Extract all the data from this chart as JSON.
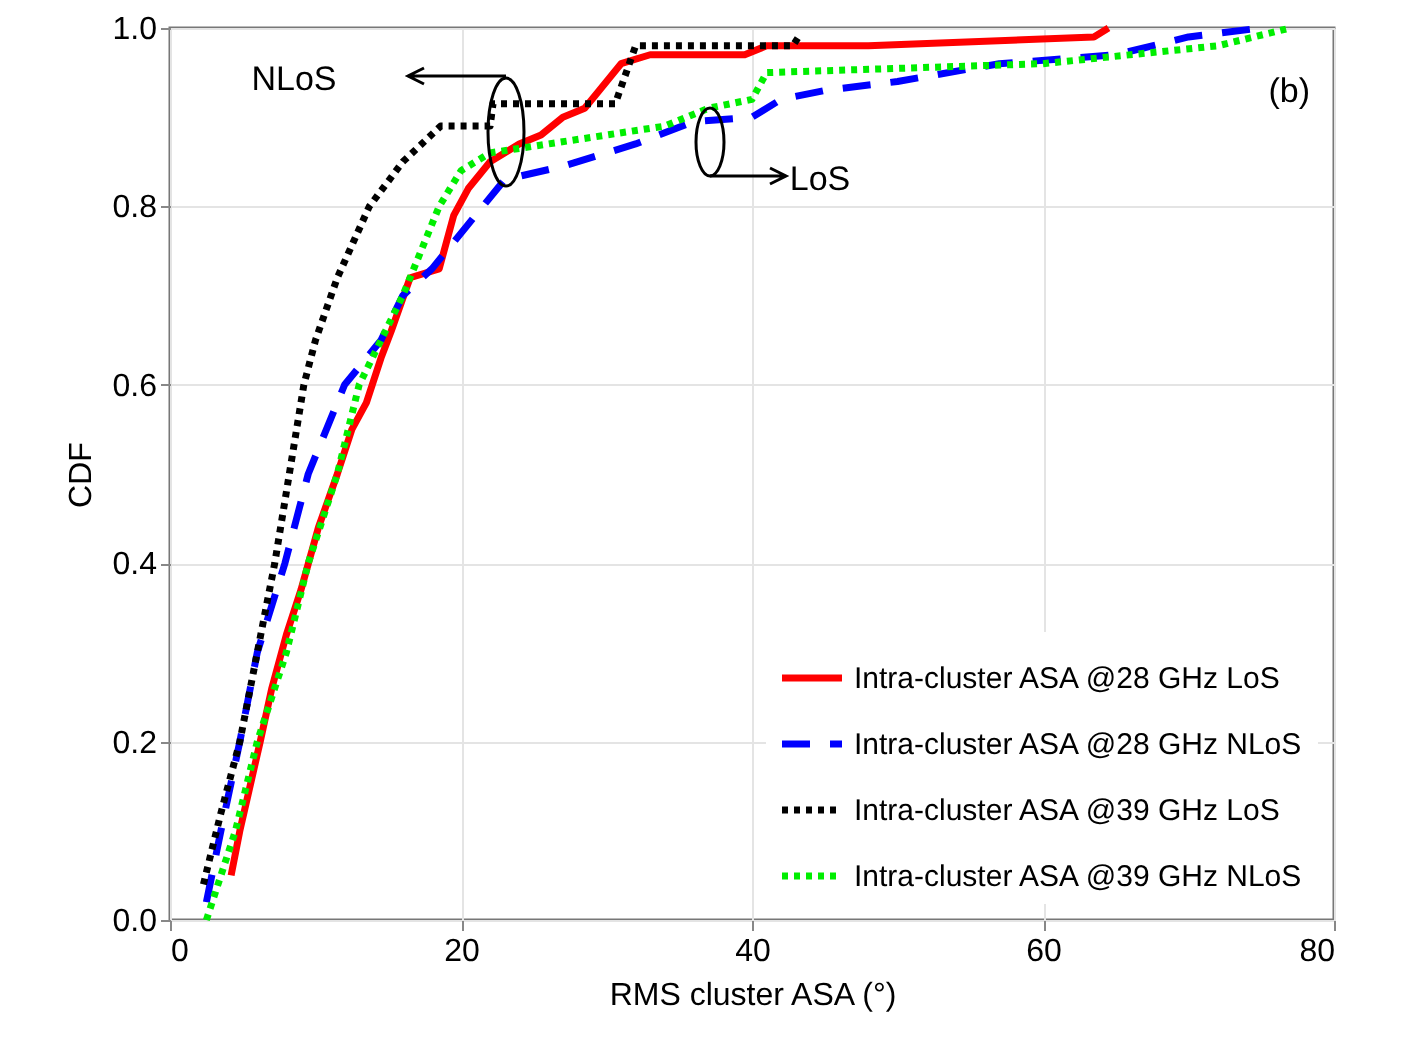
{
  "chart_data": {
    "type": "line",
    "xlabel": "RMS cluster ASA (°)",
    "ylabel": "CDF",
    "xlim": [
      0,
      80
    ],
    "xticks": [
      0,
      20,
      40,
      60,
      80
    ],
    "ylim": [
      0,
      1
    ],
    "yticks": [
      {
        "value": 0,
        "label": "0.0"
      },
      {
        "value": 0.2,
        "label": "0.2"
      },
      {
        "value": 0.4,
        "label": "0.4"
      },
      {
        "value": 0.6,
        "label": "0.6"
      },
      {
        "value": 0.8,
        "label": "0.8"
      },
      {
        "value": 1,
        "label": "1.0"
      }
    ],
    "grid": true,
    "legend": "bottom right",
    "annotations": [
      "NLoS",
      "LoS",
      "(b)"
    ],
    "series": [
      {
        "name": "Intra-cluster ASA @28 GHz LoS",
        "color": "#ff0000",
        "line_style": "solid",
        "x": [
          4.2,
          4.8,
          5.5,
          6.2,
          7,
          8,
          9,
          10.2,
          11.5,
          12.5,
          13.5,
          14.5,
          15.2,
          16.5,
          18.5,
          19.5,
          20.5,
          22,
          24,
          25.5,
          27,
          28.5,
          29.5,
          31,
          33,
          39.5,
          41,
          48,
          63.5,
          64.5
        ],
        "values": [
          0.05,
          0.1,
          0.15,
          0.2,
          0.26,
          0.32,
          0.37,
          0.44,
          0.5,
          0.55,
          0.58,
          0.63,
          0.66,
          0.72,
          0.73,
          0.79,
          0.82,
          0.85,
          0.87,
          0.88,
          0.9,
          0.91,
          0.93,
          0.96,
          0.97,
          0.97,
          0.98,
          0.98,
          0.99,
          1.0
        ]
      },
      {
        "name": "Intra-cluster ASA @28 GHz NLoS",
        "color": "#0000ff",
        "line_style": "dashed",
        "x": [
          2.5,
          3.5,
          4.8,
          6,
          7.9,
          9.5,
          12,
          14.5,
          16,
          18,
          19.5,
          21.5,
          23,
          27,
          30,
          32,
          36,
          40,
          42,
          45,
          50,
          57,
          65,
          70,
          75
        ],
        "values": [
          0.02,
          0.1,
          0.2,
          0.3,
          0.4,
          0.5,
          0.6,
          0.65,
          0.7,
          0.73,
          0.76,
          0.8,
          0.83,
          0.845,
          0.86,
          0.87,
          0.895,
          0.9,
          0.92,
          0.93,
          0.94,
          0.96,
          0.97,
          0.99,
          1.0
        ]
      },
      {
        "name": "Intra-cluster ASA @39 GHz LoS",
        "color": "#000000",
        "line_style": "dotted",
        "x": [
          2.3,
          3.5,
          4.8,
          6,
          7.2,
          8.2,
          9.2,
          10,
          11.5,
          13.7,
          16,
          18.6,
          22,
          22.2,
          30.6,
          32,
          42.8,
          43.2
        ],
        "values": [
          0.04,
          0.12,
          0.2,
          0.3,
          0.4,
          0.5,
          0.6,
          0.65,
          0.72,
          0.8,
          0.85,
          0.89,
          0.89,
          0.915,
          0.915,
          0.98,
          0.98,
          0.99
        ]
      },
      {
        "name": "Intra-cluster ASA @39 GHz NLoS",
        "color": "#00ee00",
        "line_style": "dotted",
        "x": [
          2.5,
          4.5,
          6,
          8,
          9.5,
          11.5,
          13,
          16,
          18.5,
          20,
          22,
          26,
          30,
          34,
          37,
          40,
          41,
          60,
          72,
          77
        ],
        "values": [
          0.0,
          0.1,
          0.2,
          0.3,
          0.4,
          0.5,
          0.6,
          0.7,
          0.8,
          0.84,
          0.86,
          0.87,
          0.88,
          0.89,
          0.91,
          0.92,
          0.95,
          0.96,
          0.98,
          1.0
        ]
      }
    ]
  }
}
